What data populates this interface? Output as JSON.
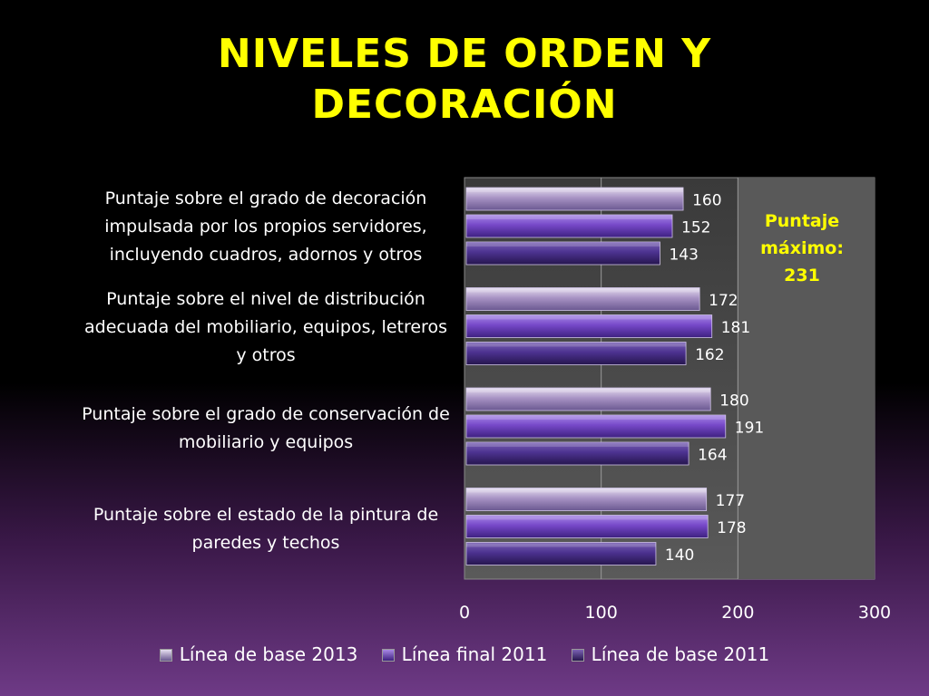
{
  "title_line1": "NIVELES DE ORDEN Y",
  "title_line2": "DECORACIÓN",
  "annotation": {
    "line1": "Puntaje",
    "line2": "máximo:",
    "line3": "231"
  },
  "colors": {
    "title": "#ffff00",
    "annotation": "#ffff00",
    "series_base_2013": "#b8a6d0",
    "series_final_2011": "#7a52c4",
    "series_base_2011": "#4a2f86"
  },
  "chart_data": {
    "type": "bar",
    "orientation": "horizontal",
    "categories": [
      "Puntaje sobre el grado de decoración impulsada por los propios servidores, incluyendo cuadros, adornos y otros",
      "Puntaje sobre el nivel de distribución adecuada del mobiliario, equipos, letreros y otros",
      "Puntaje sobre el grado de conservación de mobiliario y equipos",
      "Puntaje sobre el estado de la pintura de paredes y techos"
    ],
    "category_lines": [
      [
        "Puntaje sobre el grado de decoración",
        "impulsada por los propios servidores,",
        "incluyendo cuadros, adornos y otros"
      ],
      [
        "Puntaje sobre el nivel de distribución",
        "adecuada del mobiliario, equipos, letreros",
        "y otros"
      ],
      [
        "Puntaje sobre el grado de conservación de",
        "mobiliario y equipos"
      ],
      [
        "Puntaje sobre el estado de la pintura de",
        "paredes y techos"
      ]
    ],
    "series": [
      {
        "name": "Línea de base 2013",
        "values": [
          160,
          172,
          180,
          177
        ]
      },
      {
        "name": "Línea final 2011",
        "values": [
          152,
          181,
          191,
          178
        ]
      },
      {
        "name": "Línea de base 2011",
        "values": [
          143,
          162,
          164,
          140
        ]
      }
    ],
    "xlim": [
      0,
      300
    ],
    "xticks": [
      "0",
      "100",
      "200",
      "300"
    ],
    "grid": true,
    "shaded_region_from": 200,
    "legend_position": "bottom"
  }
}
